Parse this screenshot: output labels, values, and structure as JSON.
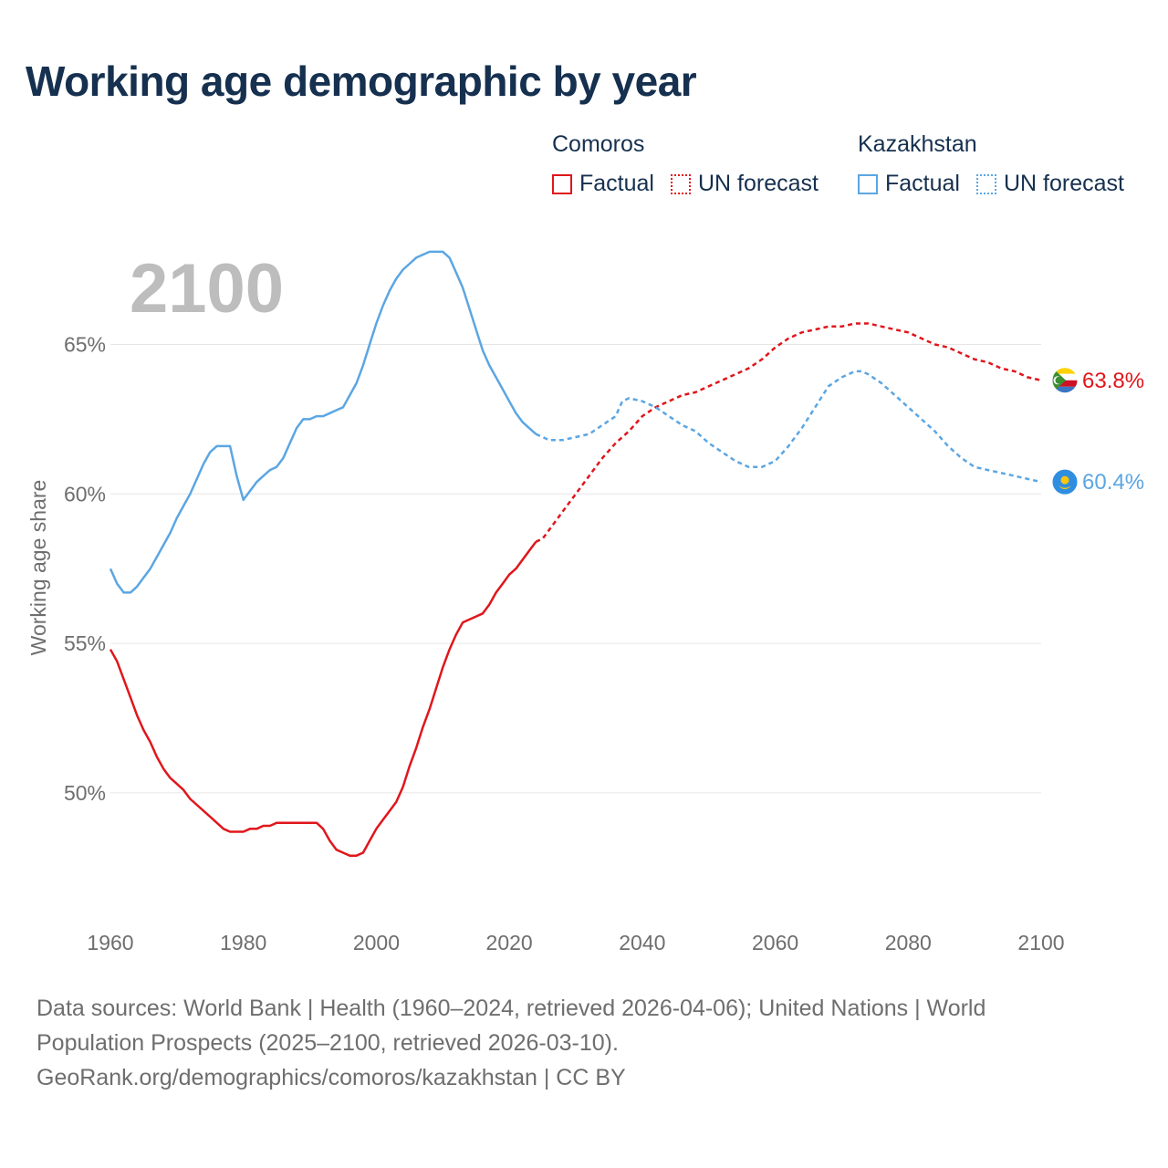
{
  "title": "Working age demographic by year",
  "year_label": "2100",
  "legend": {
    "groups": [
      {
        "country": "Comoros",
        "color": "#e0161b",
        "items": [
          {
            "label": "Factual",
            "style": "solid"
          },
          {
            "label": "UN forecast",
            "style": "dotted"
          }
        ]
      },
      {
        "country": "Kazakhstan",
        "color": "#5ba6e3",
        "items": [
          {
            "label": "Factual",
            "style": "solid"
          },
          {
            "label": "UN forecast",
            "style": "dotted"
          }
        ]
      }
    ]
  },
  "footer": {
    "line1": "Data sources: World Bank | Health (1960–2024, retrieved 2026-04-06); United Nations | World",
    "line2": "Population Prospects (2025–2100, retrieved 2026-03-10).",
    "line3": "GeoRank.org/demographics/comoros/kazakhstan | CC BY"
  },
  "chart_data": {
    "type": "line",
    "title": "Working age demographic by year",
    "ylabel": "Working age share",
    "xlabel": "",
    "xlim": [
      1960,
      2100
    ],
    "ylim": [
      46.0,
      69.5
    ],
    "x_ticks": [
      1960,
      1980,
      2000,
      2020,
      2040,
      2060,
      2080,
      2100
    ],
    "y_ticks": [
      50,
      55,
      60,
      65
    ],
    "y_tick_labels": [
      "50%",
      "55%",
      "60%",
      "65%"
    ],
    "forecast_start": 2024,
    "series": [
      {
        "name": "Comoros",
        "color": "#e0161b",
        "end_label": "63.8%",
        "points": [
          [
            1960,
            54.8
          ],
          [
            1961,
            54.4
          ],
          [
            1962,
            53.8
          ],
          [
            1963,
            53.2
          ],
          [
            1964,
            52.6
          ],
          [
            1965,
            52.1
          ],
          [
            1966,
            51.7
          ],
          [
            1967,
            51.2
          ],
          [
            1968,
            50.8
          ],
          [
            1969,
            50.5
          ],
          [
            1970,
            50.3
          ],
          [
            1971,
            50.1
          ],
          [
            1972,
            49.8
          ],
          [
            1973,
            49.6
          ],
          [
            1974,
            49.4
          ],
          [
            1975,
            49.2
          ],
          [
            1976,
            49.0
          ],
          [
            1977,
            48.8
          ],
          [
            1978,
            48.7
          ],
          [
            1979,
            48.7
          ],
          [
            1980,
            48.7
          ],
          [
            1981,
            48.8
          ],
          [
            1982,
            48.8
          ],
          [
            1983,
            48.9
          ],
          [
            1984,
            48.9
          ],
          [
            1985,
            49.0
          ],
          [
            1986,
            49.0
          ],
          [
            1987,
            49.0
          ],
          [
            1988,
            49.0
          ],
          [
            1989,
            49.0
          ],
          [
            1990,
            49.0
          ],
          [
            1991,
            49.0
          ],
          [
            1992,
            48.8
          ],
          [
            1993,
            48.4
          ],
          [
            1994,
            48.1
          ],
          [
            1995,
            48.0
          ],
          [
            1996,
            47.9
          ],
          [
            1997,
            47.9
          ],
          [
            1998,
            48.0
          ],
          [
            1999,
            48.4
          ],
          [
            2000,
            48.8
          ],
          [
            2001,
            49.1
          ],
          [
            2002,
            49.4
          ],
          [
            2003,
            49.7
          ],
          [
            2004,
            50.2
          ],
          [
            2005,
            50.9
          ],
          [
            2006,
            51.5
          ],
          [
            2007,
            52.2
          ],
          [
            2008,
            52.8
          ],
          [
            2009,
            53.5
          ],
          [
            2010,
            54.2
          ],
          [
            2011,
            54.8
          ],
          [
            2012,
            55.3
          ],
          [
            2013,
            55.7
          ],
          [
            2014,
            55.8
          ],
          [
            2015,
            55.9
          ],
          [
            2016,
            56.0
          ],
          [
            2017,
            56.3
          ],
          [
            2018,
            56.7
          ],
          [
            2019,
            57.0
          ],
          [
            2020,
            57.3
          ],
          [
            2021,
            57.5
          ],
          [
            2022,
            57.8
          ],
          [
            2023,
            58.1
          ],
          [
            2024,
            58.4
          ],
          [
            2025,
            58.5
          ],
          [
            2026,
            58.8
          ],
          [
            2028,
            59.4
          ],
          [
            2030,
            60.0
          ],
          [
            2032,
            60.6
          ],
          [
            2034,
            61.2
          ],
          [
            2036,
            61.7
          ],
          [
            2038,
            62.1
          ],
          [
            2040,
            62.6
          ],
          [
            2042,
            62.9
          ],
          [
            2044,
            63.1
          ],
          [
            2046,
            63.3
          ],
          [
            2048,
            63.4
          ],
          [
            2050,
            63.6
          ],
          [
            2052,
            63.8
          ],
          [
            2054,
            64.0
          ],
          [
            2056,
            64.2
          ],
          [
            2058,
            64.5
          ],
          [
            2060,
            64.9
          ],
          [
            2062,
            65.2
          ],
          [
            2064,
            65.4
          ],
          [
            2066,
            65.5
          ],
          [
            2068,
            65.6
          ],
          [
            2070,
            65.6
          ],
          [
            2072,
            65.7
          ],
          [
            2074,
            65.7
          ],
          [
            2076,
            65.6
          ],
          [
            2078,
            65.5
          ],
          [
            2080,
            65.4
          ],
          [
            2082,
            65.2
          ],
          [
            2084,
            65.0
          ],
          [
            2086,
            64.9
          ],
          [
            2088,
            64.7
          ],
          [
            2090,
            64.5
          ],
          [
            2092,
            64.4
          ],
          [
            2094,
            64.2
          ],
          [
            2096,
            64.1
          ],
          [
            2098,
            63.9
          ],
          [
            2100,
            63.8
          ]
        ]
      },
      {
        "name": "Kazakhstan",
        "color": "#5ba6e3",
        "end_label": "60.4%",
        "points": [
          [
            1960,
            57.5
          ],
          [
            1961,
            57.0
          ],
          [
            1962,
            56.7
          ],
          [
            1963,
            56.7
          ],
          [
            1964,
            56.9
          ],
          [
            1965,
            57.2
          ],
          [
            1966,
            57.5
          ],
          [
            1967,
            57.9
          ],
          [
            1968,
            58.3
          ],
          [
            1969,
            58.7
          ],
          [
            1970,
            59.2
          ],
          [
            1971,
            59.6
          ],
          [
            1972,
            60.0
          ],
          [
            1973,
            60.5
          ],
          [
            1974,
            61.0
          ],
          [
            1975,
            61.4
          ],
          [
            1976,
            61.6
          ],
          [
            1977,
            61.6
          ],
          [
            1978,
            61.6
          ],
          [
            1979,
            60.6
          ],
          [
            1980,
            59.8
          ],
          [
            1981,
            60.1
          ],
          [
            1982,
            60.4
          ],
          [
            1983,
            60.6
          ],
          [
            1984,
            60.8
          ],
          [
            1985,
            60.9
          ],
          [
            1986,
            61.2
          ],
          [
            1987,
            61.7
          ],
          [
            1988,
            62.2
          ],
          [
            1989,
            62.5
          ],
          [
            1990,
            62.5
          ],
          [
            1991,
            62.6
          ],
          [
            1992,
            62.6
          ],
          [
            1993,
            62.7
          ],
          [
            1994,
            62.8
          ],
          [
            1995,
            62.9
          ],
          [
            1996,
            63.3
          ],
          [
            1997,
            63.7
          ],
          [
            1998,
            64.3
          ],
          [
            1999,
            65.0
          ],
          [
            2000,
            65.7
          ],
          [
            2001,
            66.3
          ],
          [
            2002,
            66.8
          ],
          [
            2003,
            67.2
          ],
          [
            2004,
            67.5
          ],
          [
            2005,
            67.7
          ],
          [
            2006,
            67.9
          ],
          [
            2007,
            68.0
          ],
          [
            2008,
            68.1
          ],
          [
            2009,
            68.1
          ],
          [
            2010,
            68.1
          ],
          [
            2011,
            67.9
          ],
          [
            2012,
            67.4
          ],
          [
            2013,
            66.9
          ],
          [
            2014,
            66.2
          ],
          [
            2015,
            65.5
          ],
          [
            2016,
            64.8
          ],
          [
            2017,
            64.3
          ],
          [
            2018,
            63.9
          ],
          [
            2019,
            63.5
          ],
          [
            2020,
            63.1
          ],
          [
            2021,
            62.7
          ],
          [
            2022,
            62.4
          ],
          [
            2023,
            62.2
          ],
          [
            2024,
            62.0
          ],
          [
            2026,
            61.8
          ],
          [
            2028,
            61.8
          ],
          [
            2030,
            61.9
          ],
          [
            2032,
            62.0
          ],
          [
            2034,
            62.3
          ],
          [
            2036,
            62.6
          ],
          [
            2037,
            63.1
          ],
          [
            2038,
            63.2
          ],
          [
            2040,
            63.1
          ],
          [
            2042,
            62.9
          ],
          [
            2044,
            62.6
          ],
          [
            2046,
            62.3
          ],
          [
            2048,
            62.1
          ],
          [
            2050,
            61.7
          ],
          [
            2052,
            61.4
          ],
          [
            2054,
            61.1
          ],
          [
            2056,
            60.9
          ],
          [
            2058,
            60.9
          ],
          [
            2060,
            61.1
          ],
          [
            2062,
            61.6
          ],
          [
            2064,
            62.2
          ],
          [
            2066,
            62.9
          ],
          [
            2068,
            63.6
          ],
          [
            2070,
            63.9
          ],
          [
            2072,
            64.1
          ],
          [
            2073,
            64.1
          ],
          [
            2074,
            64.0
          ],
          [
            2076,
            63.7
          ],
          [
            2078,
            63.3
          ],
          [
            2080,
            62.9
          ],
          [
            2082,
            62.5
          ],
          [
            2084,
            62.1
          ],
          [
            2086,
            61.6
          ],
          [
            2088,
            61.2
          ],
          [
            2090,
            60.9
          ],
          [
            2092,
            60.8
          ],
          [
            2094,
            60.7
          ],
          [
            2096,
            60.6
          ],
          [
            2098,
            60.5
          ],
          [
            2100,
            60.4
          ]
        ]
      }
    ]
  }
}
